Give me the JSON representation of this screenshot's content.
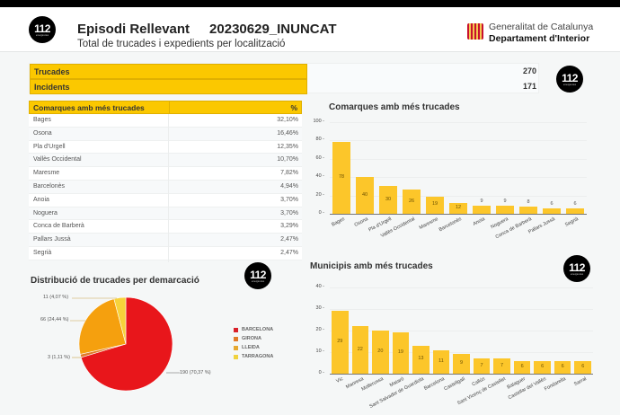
{
  "header": {
    "logo_text": "112",
    "logo_sub": "emergències",
    "title": "Episodi Rellevant",
    "code": "20230629_INUNCAT",
    "subtitle": "Total de trucades i expedients per localització",
    "org_line1": "Generalitat de Catalunya",
    "org_line2": "Departament d'Interior"
  },
  "kpis": [
    {
      "label": "Trucades",
      "value": "270"
    },
    {
      "label": "Incidents",
      "value": "171"
    }
  ],
  "table": {
    "col1": "Comarques amb més trucades",
    "col2": "%",
    "rows": [
      {
        "name": "Bages",
        "pct": "32,10%"
      },
      {
        "name": "Osona",
        "pct": "16,46%"
      },
      {
        "name": "Pla d'Urgell",
        "pct": "12,35%"
      },
      {
        "name": "Vallès Occidental",
        "pct": "10,70%"
      },
      {
        "name": "Maresme",
        "pct": "7,82%"
      },
      {
        "name": "Barcelonès",
        "pct": "4,94%"
      },
      {
        "name": "Anoia",
        "pct": "3,70%"
      },
      {
        "name": "Noguera",
        "pct": "3,70%"
      },
      {
        "name": "Conca de Barberà",
        "pct": "3,29%"
      },
      {
        "name": "Pallars Jussà",
        "pct": "2,47%"
      },
      {
        "name": "Segrià",
        "pct": "2,47%"
      }
    ]
  },
  "colors": {
    "accent_yellow": "#fbc800",
    "bar_yellow": "#fcc62a",
    "barcelona": "#e8161b",
    "girona": "#e07a28",
    "lleida": "#f5a00e",
    "tarragona": "#f7d23a"
  },
  "chart_data": [
    {
      "type": "bar",
      "title": "Comarques amb més trucades",
      "categories": [
        "Bages",
        "Osona",
        "Pla d'Urgell",
        "Vallès Occidental",
        "Maresme",
        "Barcelonès",
        "Anoia",
        "Noguera",
        "Conca de Barberà",
        "Pallars Jussà",
        "Segrià"
      ],
      "values": [
        78,
        40,
        30,
        26,
        19,
        12,
        9,
        9,
        8,
        6,
        6
      ],
      "yticks": [
        0,
        20,
        40,
        60,
        80,
        100
      ],
      "ylim": [
        0,
        100
      ],
      "xlabel": "",
      "ylabel": "",
      "grid": true
    },
    {
      "type": "pie",
      "title": "Distribució de trucades per demarcació",
      "categories": [
        "BARCELONA",
        "GIRONA",
        "LLEIDA",
        "TARRAGONA"
      ],
      "values": [
        190,
        3,
        66,
        11
      ],
      "labels": [
        "190 (70,37 %)",
        "3 (1,11 %)",
        "66 (24,44 %)",
        "11 (4,07 %)"
      ],
      "legend_position": "right"
    },
    {
      "type": "bar",
      "title": "Municipis amb més trucades",
      "categories": [
        "Vic",
        "Manresa",
        "Mollerussa",
        "Mataró",
        "Sant Salvador de Guardiola",
        "Barcelona",
        "Castellgalí",
        "Callús",
        "Sant Vicenç de Castellet",
        "Balaguer",
        "Castellar del Vallès",
        "Fondarella",
        "Sarral"
      ],
      "values": [
        29,
        22,
        20,
        19,
        13,
        11,
        9,
        7,
        7,
        6,
        6,
        6,
        6
      ],
      "yticks": [
        0,
        10,
        20,
        30,
        40
      ],
      "ylim": [
        0,
        40
      ],
      "xlabel": "",
      "ylabel": "",
      "grid": true
    }
  ]
}
